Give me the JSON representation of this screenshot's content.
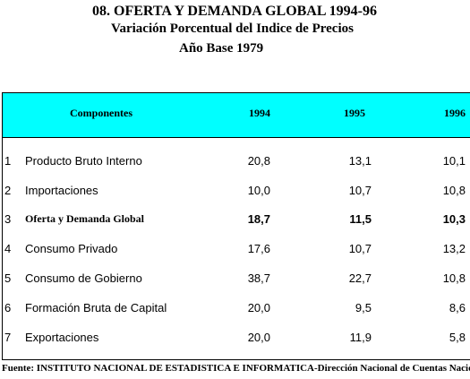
{
  "header": {
    "title": "08.  OFERTA Y DEMANDA GLOBAL 1994-96",
    "subtitle": "Variación Porcentual del Indice de Precios",
    "base_year": "Año Base 1979"
  },
  "table": {
    "columns": [
      "Componentes",
      "1994",
      "1995",
      "1996"
    ],
    "rows": [
      {
        "num": "1",
        "label": "Producto Bruto Interno",
        "v1994": "20,8",
        "v1995": "13,1",
        "v1996": "10,1",
        "bold": false
      },
      {
        "num": "2",
        "label": "Importaciones",
        "v1994": "10,0",
        "v1995": "10,7",
        "v1996": "10,8",
        "bold": false
      },
      {
        "num": "3",
        "label": "Oferta y Demanda Global",
        "v1994": "18,7",
        "v1995": "11,5",
        "v1996": "10,3",
        "bold": true
      },
      {
        "num": "4",
        "label": "Consumo Privado",
        "v1994": "17,6",
        "v1995": "10,7",
        "v1996": "13,2",
        "bold": false
      },
      {
        "num": "5",
        "label": "Consumo de Gobierno",
        "v1994": "38,7",
        "v1995": "22,7",
        "v1996": "10,8",
        "bold": false
      },
      {
        "num": "6",
        "label": "Formación Bruta de Capital",
        "v1994": "20,0",
        "v1995": "9,5",
        "v1996": "8,6",
        "bold": false
      },
      {
        "num": "7",
        "label": "Exportaciones",
        "v1994": "20,0",
        "v1995": "11,9",
        "v1996": "5,8",
        "bold": false
      }
    ]
  },
  "footer": {
    "source": "Fuente: INSTITUTO NACIONAL DE ESTADISTICA E INFORMATICA-Dirección Nacional de Cuentas Nacionales"
  },
  "colors": {
    "header_bg": "#00ffff"
  }
}
